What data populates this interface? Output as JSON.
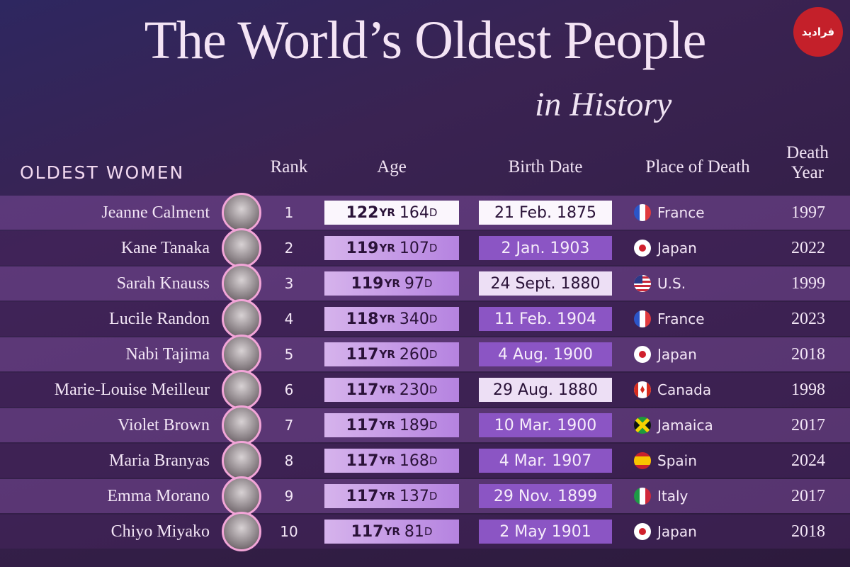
{
  "header": {
    "title": "The World’s Oldest People",
    "subtitle": "in History",
    "watermark": "فرادید"
  },
  "table": {
    "columns": [
      "OLDEST WOMEN",
      "Rank",
      "Age",
      "Birth Date",
      "Place of Death",
      "Death Year"
    ],
    "units": {
      "years": "YR",
      "days": "D"
    },
    "rows": [
      {
        "name": "Jeanne Calment",
        "rank": "1",
        "years": "122",
        "days": "164",
        "birth": "21 Feb. 1875",
        "place": "France",
        "death": "1997"
      },
      {
        "name": "Kane Tanaka",
        "rank": "2",
        "years": "119",
        "days": "107",
        "birth": "2 Jan. 1903",
        "place": "Japan",
        "death": "2022"
      },
      {
        "name": "Sarah Knauss",
        "rank": "3",
        "years": "119",
        "days": "97",
        "birth": "24 Sept. 1880",
        "place": "U.S.",
        "death": "1999"
      },
      {
        "name": "Lucile Randon",
        "rank": "4",
        "years": "118",
        "days": "340",
        "birth": "11 Feb. 1904",
        "place": "France",
        "death": "2023"
      },
      {
        "name": "Nabi Tajima",
        "rank": "5",
        "years": "117",
        "days": "260",
        "birth": "4 Aug. 1900",
        "place": "Japan",
        "death": "2018"
      },
      {
        "name": "Marie-Louise Meilleur",
        "rank": "6",
        "years": "117",
        "days": "230",
        "birth": "29 Aug. 1880",
        "place": "Canada",
        "death": "1998"
      },
      {
        "name": "Violet Brown",
        "rank": "7",
        "years": "117",
        "days": "189",
        "birth": "10 Mar. 1900",
        "place": "Jamaica",
        "death": "2017"
      },
      {
        "name": "Maria Branyas",
        "rank": "8",
        "years": "117",
        "days": "168",
        "birth": "4 Mar. 1907",
        "place": "Spain",
        "death": "2024"
      },
      {
        "name": "Emma Morano",
        "rank": "9",
        "years": "117",
        "days": "137",
        "birth": "29 Nov. 1899",
        "place": "Italy",
        "death": "2017"
      },
      {
        "name": "Chiyo Miyako",
        "rank": "10",
        "years": "117",
        "days": "81",
        "birth": "2 May 1901",
        "place": "Japan",
        "death": "2018"
      }
    ]
  }
}
